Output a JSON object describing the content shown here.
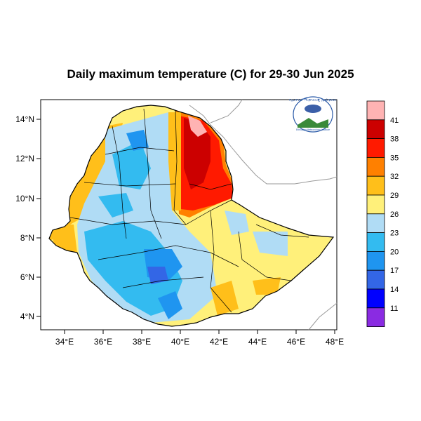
{
  "title": "Daily maximum temperature (C) for 29-30 Jun 2025",
  "axes": {
    "x_ticks": [
      "34°E",
      "36°E",
      "38°E",
      "40°E",
      "42°E",
      "44°E",
      "46°E",
      "48°E"
    ],
    "y_ticks": [
      "14°N",
      "12°N",
      "10°N",
      "8°N",
      "6°N",
      "4°N"
    ]
  },
  "colorbar": {
    "labels": [
      "41",
      "38",
      "35",
      "32",
      "29",
      "26",
      "23",
      "20",
      "17",
      "14",
      "11"
    ],
    "colors": [
      "#ffb3b3",
      "#cc0000",
      "#ff1a00",
      "#ff8000",
      "#ffbf1a",
      "#fff07a",
      "#b0dcf5",
      "#33bbf0",
      "#1f95f0",
      "#3366e6",
      "#0000ff",
      "#8a2be2"
    ]
  },
  "logo": {
    "top_text": "የኢትዮጵያ ሚቲዮሮሎጂ ኢንስቲትዩት",
    "bottom_text": "Ethiopian Meteorology Institute"
  }
}
